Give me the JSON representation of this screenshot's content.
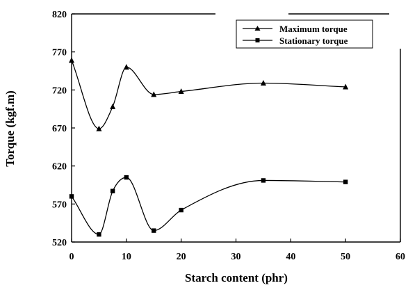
{
  "chart_data": {
    "type": "line",
    "title": "",
    "xlabel": "Starch content (phr)",
    "ylabel": "Torque (kgf.m)",
    "xlim": [
      0,
      60
    ],
    "ylim": [
      520,
      820
    ],
    "xticks": [
      0,
      10,
      20,
      30,
      40,
      50,
      60
    ],
    "yticks": [
      520,
      570,
      620,
      670,
      720,
      770,
      820
    ],
    "grid": false,
    "legend_position": "top-right",
    "series": [
      {
        "name": "Maximum torque",
        "marker": "triangle",
        "x": [
          0,
          5,
          7.5,
          10,
          15,
          20,
          35,
          50
        ],
        "y": [
          759,
          669,
          698,
          750,
          714,
          718,
          729,
          724
        ]
      },
      {
        "name": "Stationary torque",
        "marker": "square",
        "x": [
          0,
          5,
          7.5,
          10,
          15,
          20,
          35,
          50
        ],
        "y": [
          580,
          530,
          587,
          605,
          535,
          562,
          601,
          599
        ]
      }
    ],
    "colors": {
      "line": "#000000",
      "background": "#ffffff"
    }
  }
}
